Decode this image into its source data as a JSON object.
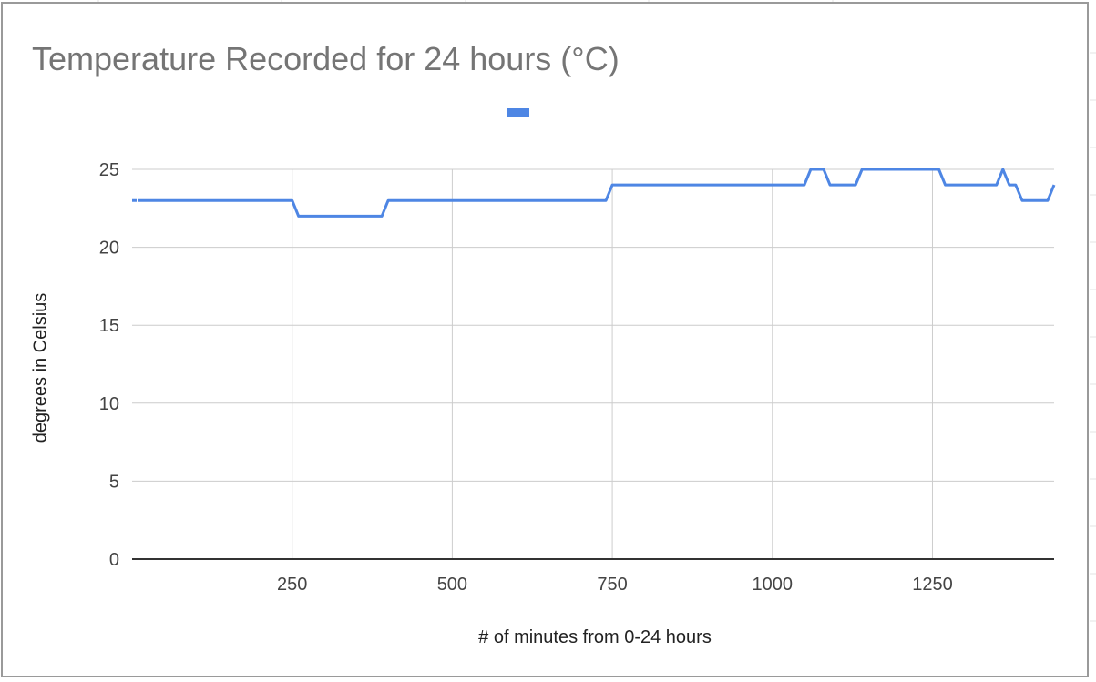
{
  "chart_data": {
    "type": "line",
    "title": "Temperature Recorded for 24 hours (°C)",
    "xlabel": "# of minutes from 0-24 hours",
    "ylabel": "degrees in Celsius",
    "xlim": [
      0,
      1440
    ],
    "ylim": [
      0,
      25
    ],
    "x_ticks": [
      250,
      500,
      750,
      1000,
      1250
    ],
    "x_tick_labels": [
      "250",
      "500",
      "750",
      "1000",
      "1250"
    ],
    "y_ticks": [
      0,
      5,
      10,
      15,
      20,
      25
    ],
    "y_tick_labels": [
      "0",
      "5",
      "10",
      "15",
      "20",
      "25"
    ],
    "grid": true,
    "legend_position": "top",
    "series": [
      {
        "color": "#4e86e4",
        "x": [
          10,
          250,
          260,
          390,
          400,
          740,
          750,
          1050,
          1060,
          1080,
          1090,
          1130,
          1140,
          1260,
          1270,
          1350,
          1360,
          1370,
          1380,
          1390,
          1430,
          1440
        ],
        "values": [
          23,
          23,
          22,
          22,
          23,
          23,
          24,
          24,
          25,
          25,
          24,
          24,
          25,
          25,
          24,
          24,
          25,
          24,
          24,
          23,
          23,
          24
        ]
      }
    ]
  }
}
